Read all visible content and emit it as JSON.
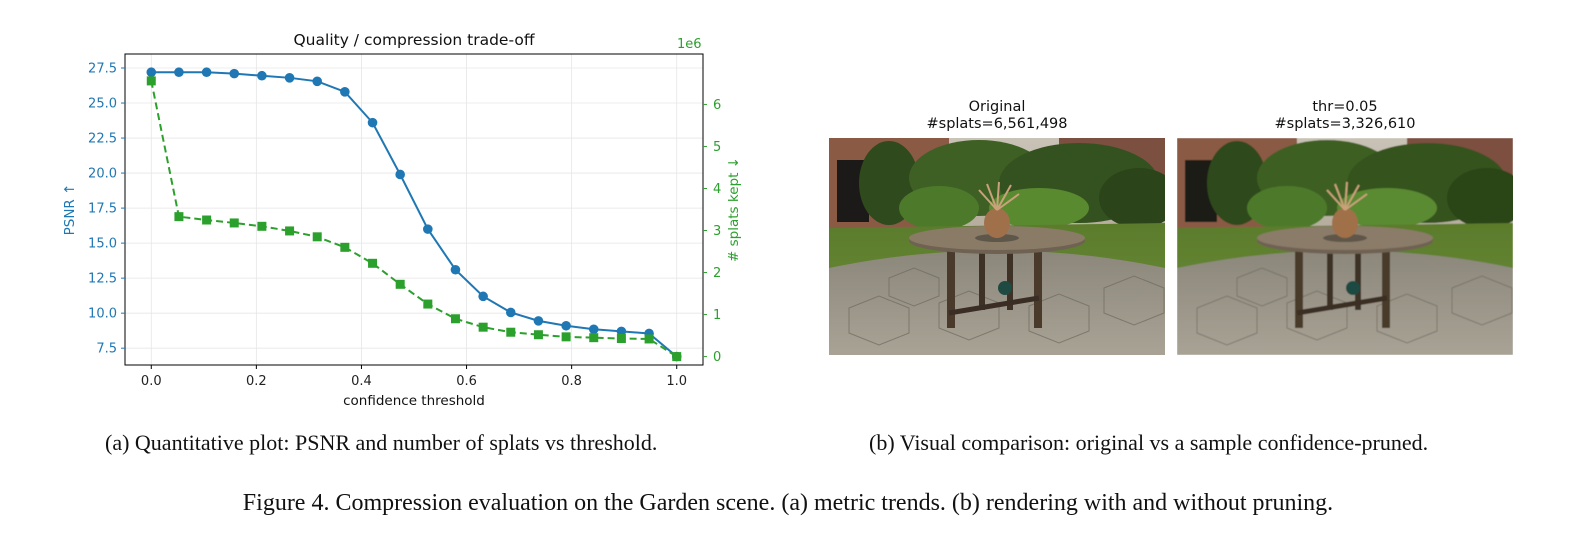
{
  "chart_data": {
    "type": "line",
    "title": "Quality / compression trade-off",
    "xlabel": "confidence threshold",
    "xlim": [
      -0.05,
      1.05
    ],
    "xticks": [
      "0.0",
      "0.2",
      "0.4",
      "0.6",
      "0.8",
      "1.0"
    ],
    "y_left": {
      "label": "PSNR ↑",
      "lim": [
        6.3,
        28.5
      ],
      "ticks": [
        "7.5",
        "10.0",
        "12.5",
        "15.0",
        "17.5",
        "20.0",
        "22.5",
        "25.0",
        "27.5"
      ]
    },
    "y_right": {
      "label": "# splats kept ↓",
      "offset_text": "1e6",
      "lim": [
        -0.2,
        7.2
      ],
      "ticks": [
        "0",
        "1",
        "2",
        "3",
        "4",
        "5",
        "6"
      ]
    },
    "grid": true,
    "x": [
      0.0,
      0.0526,
      0.1053,
      0.1579,
      0.2105,
      0.2632,
      0.3158,
      0.3684,
      0.4211,
      0.4737,
      0.5263,
      0.5789,
      0.6316,
      0.6842,
      0.7368,
      0.7895,
      0.8421,
      0.8947,
      0.9474,
      1.0
    ],
    "series": [
      {
        "name": "PSNR",
        "axis": "left",
        "color": "#1f77b4",
        "style": "solid",
        "marker": "circle",
        "values": [
          27.2,
          27.2,
          27.2,
          27.1,
          26.95,
          26.8,
          26.55,
          25.8,
          23.6,
          19.9,
          16.0,
          13.1,
          11.2,
          10.05,
          9.45,
          9.1,
          8.85,
          8.7,
          8.55,
          6.9
        ]
      },
      {
        "name": "# splats kept",
        "axis": "right",
        "color": "#2ca02c",
        "style": "dashed",
        "marker": "square",
        "values": [
          6.56,
          3.33,
          3.25,
          3.18,
          3.1,
          2.99,
          2.85,
          2.6,
          2.22,
          1.72,
          1.25,
          0.9,
          0.7,
          0.58,
          0.52,
          0.47,
          0.45,
          0.43,
          0.42,
          0.0
        ]
      }
    ]
  },
  "panels": {
    "original": {
      "title_line1": "Original",
      "title_line2": "#splats=6,561,498"
    },
    "pruned": {
      "title_line1": "thr=0.05",
      "title_line2": "#splats=3,326,610"
    }
  },
  "captions": {
    "a": "(a) Quantitative plot: PSNR and number of splats vs threshold.",
    "b": "(b) Visual comparison: original vs a sample confidence-pruned.",
    "figure": "Figure 4. Compression evaluation on the Garden scene. (a) metric trends. (b) rendering with and without pruning."
  },
  "colors": {
    "psnr": "#1f77b4",
    "splats": "#2ca02c",
    "grid": "#e6e6e6"
  }
}
